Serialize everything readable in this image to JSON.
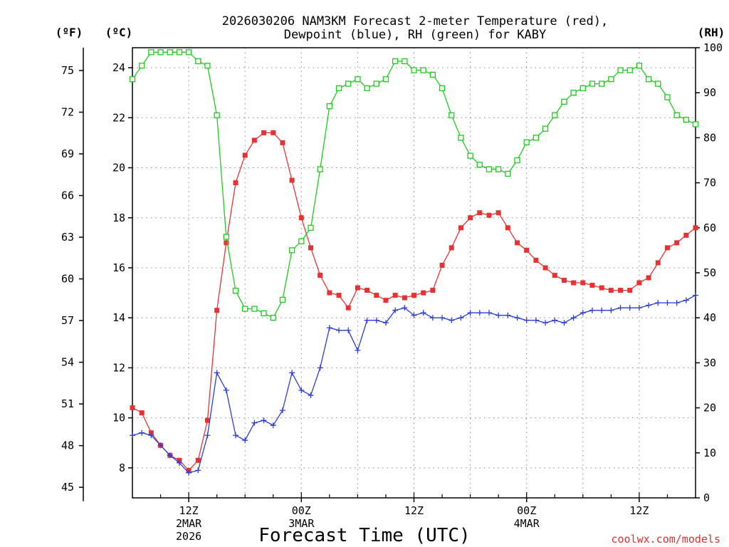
{
  "colors": {
    "temp": "#e83232",
    "dew": "#2a3fd8",
    "rh": "#1ccc1c",
    "grid": "#888888",
    "credit": "#e03030"
  },
  "chart_data": {
    "type": "line",
    "title_line1": "2026030206 NAM3KM Forecast 2-meter Temperature (red),",
    "title_line2": "Dewpoint (blue), RH (green) for KABY",
    "xlabel": "Forecast Time (UTC)",
    "credit": "coolwx.com/models",
    "left_outer_axis": {
      "unit": "(ºF)",
      "ticks": [
        "45",
        "48",
        "51",
        "54",
        "57",
        "60",
        "63",
        "66",
        "69",
        "72",
        "75"
      ]
    },
    "left_axis": {
      "unit": "(ºC)",
      "ylim": [
        6.8,
        24.8
      ],
      "ticks": [
        "8",
        "10",
        "12",
        "14",
        "16",
        "18",
        "20",
        "22",
        "24"
      ]
    },
    "right_axis": {
      "unit": "(RH)",
      "ylim": [
        0,
        100
      ],
      "ticks": [
        "0",
        "10",
        "20",
        "30",
        "40",
        "50",
        "60",
        "70",
        "80",
        "90",
        "100"
      ]
    },
    "x_axis": {
      "xlim": [
        6,
        66
      ],
      "units": "forecast hours since 2026-03-02 06Z",
      "ticks": [
        {
          "hour": 12,
          "label": "12Z",
          "date": "2MAR",
          "year": "2026"
        },
        {
          "hour": 24,
          "label": "00Z",
          "date": "3MAR",
          "year": ""
        },
        {
          "hour": 36,
          "label": "12Z",
          "date": "",
          "year": ""
        },
        {
          "hour": 48,
          "label": "00Z",
          "date": "4MAR",
          "year": ""
        },
        {
          "hour": 60,
          "label": "12Z",
          "date": "",
          "year": ""
        }
      ]
    },
    "x": [
      6,
      7,
      8,
      9,
      10,
      11,
      12,
      13,
      14,
      15,
      16,
      17,
      18,
      19,
      20,
      21,
      22,
      23,
      24,
      25,
      26,
      27,
      28,
      29,
      30,
      31,
      32,
      33,
      34,
      35,
      36,
      37,
      38,
      39,
      40,
      41,
      42,
      43,
      44,
      45,
      46,
      47,
      48,
      49,
      50,
      51,
      52,
      53,
      54,
      55,
      56,
      57,
      58,
      59,
      60,
      61,
      62,
      63,
      64,
      65,
      66
    ],
    "series": [
      {
        "name": "2-meter Temperature",
        "color": "red",
        "axis": "C",
        "marker": "filled-square",
        "values": [
          10.4,
          10.2,
          9.4,
          8.9,
          8.5,
          8.3,
          7.9,
          8.3,
          9.9,
          14.3,
          17.0,
          19.4,
          20.5,
          21.1,
          21.4,
          21.4,
          21.0,
          19.5,
          18.0,
          16.8,
          15.7,
          15.0,
          14.9,
          14.4,
          15.2,
          15.1,
          14.9,
          14.7,
          14.9,
          14.8,
          14.9,
          15.0,
          15.1,
          16.1,
          16.8,
          17.6,
          18.0,
          18.2,
          18.1,
          18.2,
          17.6,
          17.0,
          16.7,
          16.3,
          16.0,
          15.7,
          15.5,
          15.4,
          15.4,
          15.3,
          15.2,
          15.1,
          15.1,
          15.1,
          15.4,
          15.6,
          16.2,
          16.8,
          17.0,
          17.3,
          17.6
        ]
      },
      {
        "name": "Dewpoint",
        "color": "blue",
        "axis": "C",
        "marker": "plus",
        "values": [
          9.3,
          9.4,
          9.3,
          8.9,
          8.5,
          8.2,
          7.8,
          7.9,
          9.3,
          11.8,
          11.1,
          9.3,
          9.1,
          9.8,
          9.9,
          9.7,
          10.3,
          11.8,
          11.1,
          10.9,
          12.0,
          13.6,
          13.5,
          13.5,
          12.7,
          13.9,
          13.9,
          13.8,
          14.3,
          14.4,
          14.1,
          14.2,
          14.0,
          14.0,
          13.9,
          14.0,
          14.2,
          14.2,
          14.2,
          14.1,
          14.1,
          14.0,
          13.9,
          13.9,
          13.8,
          13.9,
          13.8,
          14.0,
          14.2,
          14.3,
          14.3,
          14.3,
          14.4,
          14.4,
          14.4,
          14.5,
          14.6,
          14.6,
          14.6,
          14.7,
          14.9
        ]
      },
      {
        "name": "RH",
        "color": "green",
        "axis": "RH",
        "marker": "open-square",
        "values": [
          93,
          96,
          99,
          99,
          99,
          99,
          99,
          97,
          96,
          85,
          58,
          46,
          42,
          42,
          41,
          40,
          44,
          55,
          57,
          60,
          73,
          87,
          91,
          92,
          93,
          91,
          92,
          93,
          97,
          97,
          95,
          95,
          94,
          91,
          85,
          80,
          76,
          74,
          73,
          73,
          72,
          75,
          79,
          80,
          82,
          85,
          88,
          90,
          91,
          92,
          92,
          93,
          95,
          95,
          96,
          93,
          92,
          89,
          85,
          84,
          83
        ]
      }
    ]
  }
}
